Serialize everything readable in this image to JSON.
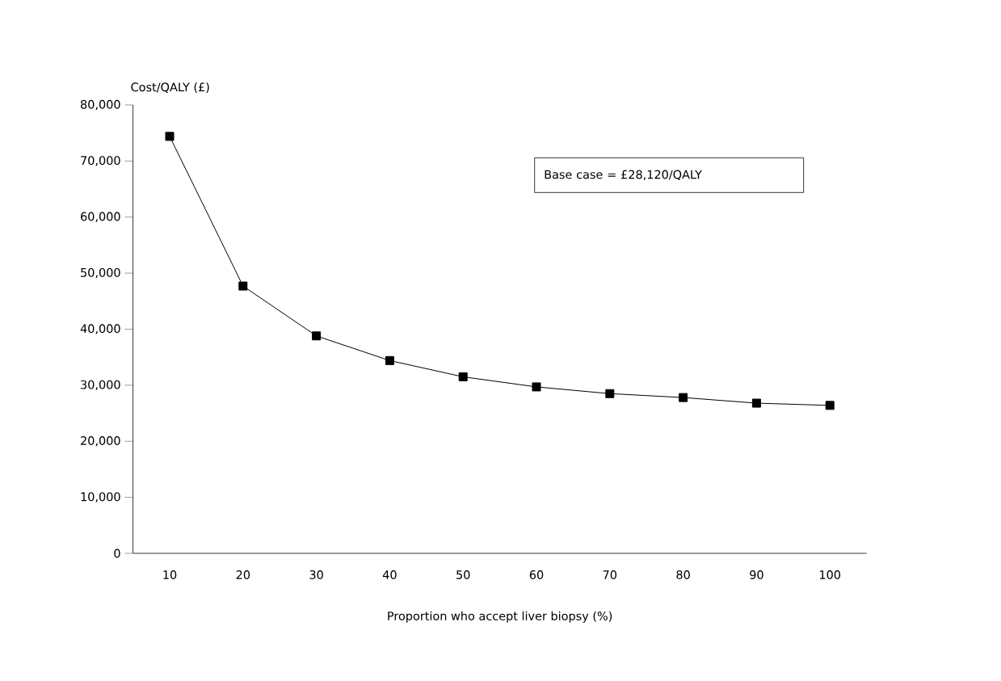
{
  "chart_data": {
    "type": "line",
    "xlabel": "Proportion who accept liver biopsy (%)",
    "ylabel": "Cost/QALY (£)",
    "categories": [
      "10",
      "20",
      "30",
      "40",
      "50",
      "60",
      "70",
      "80",
      "90",
      "100"
    ],
    "series": [
      {
        "color": "#000000",
        "values": [
          74400,
          47700,
          38800,
          34400,
          31500,
          29700,
          28500,
          27800,
          26800,
          26400
        ]
      }
    ],
    "ylim": [
      0,
      80000
    ],
    "yticks": [
      0,
      {
        "value": 10000,
        "label": "10,000"
      },
      {
        "value": 20000,
        "label": "20,000"
      },
      {
        "value": 30000,
        "label": "30,000"
      },
      {
        "value": 40000,
        "label": "40,000"
      },
      {
        "value": 50000,
        "label": "50,000"
      },
      {
        "value": 60000,
        "label": "60,000"
      },
      {
        "value": 70000,
        "label": "70,000"
      },
      {
        "value": 80000,
        "label": "80,000"
      }
    ],
    "annotations": [
      "Base case = £28,120/QALY"
    ],
    "marker": "square",
    "line_style": "solid",
    "grid": false
  }
}
